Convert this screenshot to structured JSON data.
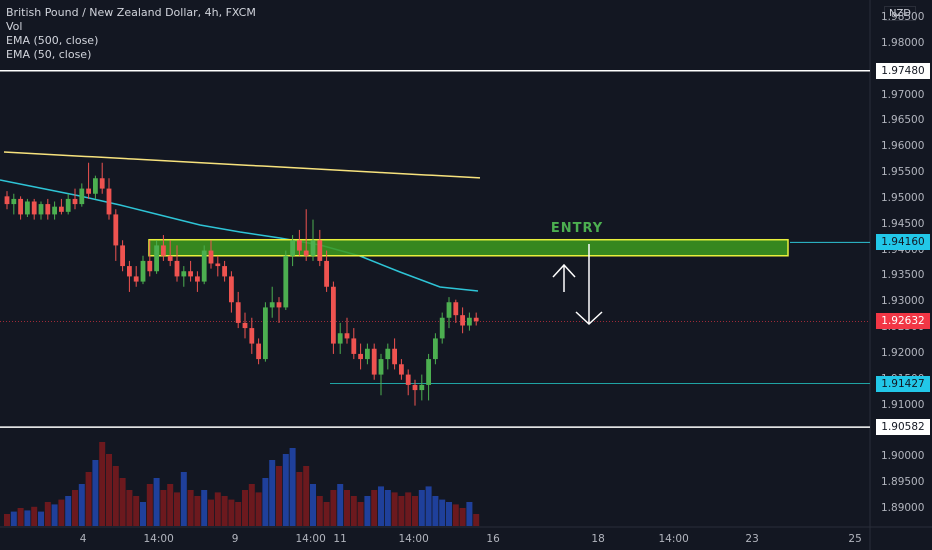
{
  "legend": {
    "title": "British Pound / New Zealand Dollar, 4h, FXCM",
    "vol": "Vol",
    "ema500": "EMA (500, close)",
    "ema50": "EMA (50, close)"
  },
  "currency_badge": "NZD",
  "annotation": {
    "entry_text": "ENTRY"
  },
  "price_axis": {
    "ticks": [
      "1.98500",
      "1.98000",
      "1.97500",
      "1.97000",
      "1.96500",
      "1.96000",
      "1.95500",
      "1.95000",
      "1.94500",
      "1.94000",
      "1.93500",
      "1.93000",
      "1.92500",
      "1.92000",
      "1.91500",
      "1.91000",
      "1.90500",
      "1.90000",
      "1.89500",
      "1.89000"
    ],
    "tick_values": [
      1.985,
      1.98,
      1.975,
      1.97,
      1.965,
      1.96,
      1.955,
      1.95,
      1.945,
      1.94,
      1.935,
      1.93,
      1.925,
      1.92,
      1.915,
      1.91,
      1.905,
      1.9,
      1.895,
      1.89
    ]
  },
  "price_labels": [
    {
      "text": "1.97480",
      "value": 1.9748,
      "bg": "#ffffff",
      "fg": "#131722"
    },
    {
      "text": "1.94160",
      "value": 1.9416,
      "bg": "#22c7e8",
      "fg": "#131722"
    },
    {
      "text": "1.92632",
      "value": 1.92632,
      "bg": "#f23645",
      "fg": "#ffffff"
    },
    {
      "text": "1.91427",
      "value": 1.91427,
      "bg": "#22c7e8",
      "fg": "#131722"
    },
    {
      "text": "1.90582",
      "value": 1.90582,
      "bg": "#ffffff",
      "fg": "#131722"
    }
  ],
  "time_axis": {
    "labels": [
      "4",
      "14:00",
      "9",
      "14:00",
      "11",
      "14:00",
      "16",
      "18",
      "14:00",
      "23",
      "25"
    ]
  },
  "colors": {
    "bg": "#131722",
    "up": "#26a69a",
    "down": "#ef5350",
    "candle_up": "#4caf50",
    "candle_down": "#ef5350",
    "ema500": "#f7e27d",
    "ema50": "#2ec4d6",
    "zone_fill": "#3d9b1f",
    "zone_border": "#e8f03c",
    "hline": "#ffffff",
    "support_line": "#1fa3a3",
    "vol_up": "#2962ff",
    "vol_down": "#b71c1c"
  },
  "chart_data": {
    "type": "candlestick",
    "symbol": "British Pound / New Zealand Dollar, 4h, FXCM",
    "ylim": [
      1.8865,
      1.9885
    ],
    "candles": [
      {
        "o": 1.9505,
        "h": 1.9515,
        "l": 1.948,
        "c": 1.949
      },
      {
        "o": 1.949,
        "h": 1.951,
        "l": 1.947,
        "c": 1.95
      },
      {
        "o": 1.95,
        "h": 1.9505,
        "l": 1.946,
        "c": 1.947
      },
      {
        "o": 1.947,
        "h": 1.95,
        "l": 1.9465,
        "c": 1.9495
      },
      {
        "o": 1.9495,
        "h": 1.95,
        "l": 1.946,
        "c": 1.947
      },
      {
        "o": 1.947,
        "h": 1.9495,
        "l": 1.946,
        "c": 1.949
      },
      {
        "o": 1.949,
        "h": 1.95,
        "l": 1.946,
        "c": 1.947
      },
      {
        "o": 1.947,
        "h": 1.9495,
        "l": 1.946,
        "c": 1.9485
      },
      {
        "o": 1.9485,
        "h": 1.95,
        "l": 1.947,
        "c": 1.9475
      },
      {
        "o": 1.9475,
        "h": 1.951,
        "l": 1.947,
        "c": 1.95
      },
      {
        "o": 1.95,
        "h": 1.952,
        "l": 1.948,
        "c": 1.949
      },
      {
        "o": 1.949,
        "h": 1.953,
        "l": 1.9485,
        "c": 1.952
      },
      {
        "o": 1.952,
        "h": 1.957,
        "l": 1.95,
        "c": 1.951
      },
      {
        "o": 1.951,
        "h": 1.9545,
        "l": 1.95,
        "c": 1.954
      },
      {
        "o": 1.954,
        "h": 1.957,
        "l": 1.951,
        "c": 1.952
      },
      {
        "o": 1.952,
        "h": 1.954,
        "l": 1.946,
        "c": 1.947
      },
      {
        "o": 1.947,
        "h": 1.948,
        "l": 1.938,
        "c": 1.941
      },
      {
        "o": 1.941,
        "h": 1.942,
        "l": 1.936,
        "c": 1.937
      },
      {
        "o": 1.937,
        "h": 1.938,
        "l": 1.932,
        "c": 1.935
      },
      {
        "o": 1.935,
        "h": 1.937,
        "l": 1.933,
        "c": 1.934
      },
      {
        "o": 1.934,
        "h": 1.939,
        "l": 1.9335,
        "c": 1.938
      },
      {
        "o": 1.938,
        "h": 1.942,
        "l": 1.935,
        "c": 1.936
      },
      {
        "o": 1.936,
        "h": 1.942,
        "l": 1.9355,
        "c": 1.941
      },
      {
        "o": 1.941,
        "h": 1.943,
        "l": 1.938,
        "c": 1.939
      },
      {
        "o": 1.939,
        "h": 1.942,
        "l": 1.937,
        "c": 1.938
      },
      {
        "o": 1.938,
        "h": 1.941,
        "l": 1.934,
        "c": 1.935
      },
      {
        "o": 1.935,
        "h": 1.937,
        "l": 1.933,
        "c": 1.936
      },
      {
        "o": 1.936,
        "h": 1.938,
        "l": 1.934,
        "c": 1.935
      },
      {
        "o": 1.935,
        "h": 1.936,
        "l": 1.932,
        "c": 1.934
      },
      {
        "o": 1.934,
        "h": 1.941,
        "l": 1.9335,
        "c": 1.94
      },
      {
        "o": 1.94,
        "h": 1.942,
        "l": 1.9365,
        "c": 1.9375
      },
      {
        "o": 1.9375,
        "h": 1.939,
        "l": 1.935,
        "c": 1.937
      },
      {
        "o": 1.937,
        "h": 1.938,
        "l": 1.934,
        "c": 1.935
      },
      {
        "o": 1.935,
        "h": 1.936,
        "l": 1.928,
        "c": 1.93
      },
      {
        "o": 1.93,
        "h": 1.932,
        "l": 1.925,
        "c": 1.926
      },
      {
        "o": 1.926,
        "h": 1.928,
        "l": 1.923,
        "c": 1.925
      },
      {
        "o": 1.925,
        "h": 1.927,
        "l": 1.92,
        "c": 1.922
      },
      {
        "o": 1.922,
        "h": 1.923,
        "l": 1.918,
        "c": 1.919
      },
      {
        "o": 1.919,
        "h": 1.93,
        "l": 1.9185,
        "c": 1.929
      },
      {
        "o": 1.929,
        "h": 1.933,
        "l": 1.927,
        "c": 1.93
      },
      {
        "o": 1.93,
        "h": 1.931,
        "l": 1.926,
        "c": 1.929
      },
      {
        "o": 1.929,
        "h": 1.94,
        "l": 1.9285,
        "c": 1.939
      },
      {
        "o": 1.939,
        "h": 1.943,
        "l": 1.937,
        "c": 1.942
      },
      {
        "o": 1.942,
        "h": 1.944,
        "l": 1.939,
        "c": 1.94
      },
      {
        "o": 1.94,
        "h": 1.948,
        "l": 1.938,
        "c": 1.939
      },
      {
        "o": 1.939,
        "h": 1.946,
        "l": 1.938,
        "c": 1.942
      },
      {
        "o": 1.942,
        "h": 1.944,
        "l": 1.937,
        "c": 1.938
      },
      {
        "o": 1.938,
        "h": 1.94,
        "l": 1.932,
        "c": 1.933
      },
      {
        "o": 1.933,
        "h": 1.934,
        "l": 1.92,
        "c": 1.922
      },
      {
        "o": 1.922,
        "h": 1.926,
        "l": 1.92,
        "c": 1.924
      },
      {
        "o": 1.924,
        "h": 1.927,
        "l": 1.922,
        "c": 1.923
      },
      {
        "o": 1.923,
        "h": 1.925,
        "l": 1.919,
        "c": 1.92
      },
      {
        "o": 1.92,
        "h": 1.922,
        "l": 1.917,
        "c": 1.919
      },
      {
        "o": 1.919,
        "h": 1.922,
        "l": 1.918,
        "c": 1.921
      },
      {
        "o": 1.921,
        "h": 1.922,
        "l": 1.915,
        "c": 1.916
      },
      {
        "o": 1.916,
        "h": 1.92,
        "l": 1.912,
        "c": 1.919
      },
      {
        "o": 1.919,
        "h": 1.922,
        "l": 1.917,
        "c": 1.921
      },
      {
        "o": 1.921,
        "h": 1.923,
        "l": 1.917,
        "c": 1.918
      },
      {
        "o": 1.918,
        "h": 1.919,
        "l": 1.915,
        "c": 1.916
      },
      {
        "o": 1.916,
        "h": 1.917,
        "l": 1.912,
        "c": 1.914
      },
      {
        "o": 1.914,
        "h": 1.915,
        "l": 1.91,
        "c": 1.913
      },
      {
        "o": 1.913,
        "h": 1.916,
        "l": 1.911,
        "c": 1.914
      },
      {
        "o": 1.914,
        "h": 1.92,
        "l": 1.911,
        "c": 1.919
      },
      {
        "o": 1.919,
        "h": 1.924,
        "l": 1.918,
        "c": 1.923
      },
      {
        "o": 1.923,
        "h": 1.928,
        "l": 1.922,
        "c": 1.927
      },
      {
        "o": 1.927,
        "h": 1.931,
        "l": 1.925,
        "c": 1.93
      },
      {
        "o": 1.93,
        "h": 1.9305,
        "l": 1.926,
        "c": 1.9275
      },
      {
        "o": 1.9275,
        "h": 1.929,
        "l": 1.924,
        "c": 1.9255
      },
      {
        "o": 1.9255,
        "h": 1.928,
        "l": 1.9245,
        "c": 1.927
      },
      {
        "o": 1.927,
        "h": 1.928,
        "l": 1.9255,
        "c": 1.92632
      }
    ],
    "volume": [
      0.1,
      0.12,
      0.15,
      0.13,
      0.16,
      0.12,
      0.2,
      0.18,
      0.22,
      0.25,
      0.3,
      0.35,
      0.45,
      0.55,
      0.7,
      0.6,
      0.5,
      0.4,
      0.3,
      0.25,
      0.2,
      0.35,
      0.4,
      0.3,
      0.35,
      0.28,
      0.45,
      0.3,
      0.25,
      0.3,
      0.22,
      0.28,
      0.25,
      0.22,
      0.2,
      0.3,
      0.35,
      0.28,
      0.4,
      0.55,
      0.5,
      0.6,
      0.65,
      0.45,
      0.5,
      0.35,
      0.25,
      0.2,
      0.3,
      0.35,
      0.3,
      0.25,
      0.2,
      0.25,
      0.3,
      0.33,
      0.3,
      0.28,
      0.25,
      0.28,
      0.25,
      0.3,
      0.33,
      0.25,
      0.22,
      0.2,
      0.18,
      0.15,
      0.2,
      0.1
    ],
    "entry_zone": [
      1.939,
      1.9421
    ],
    "horizontal_lines": [
      1.9748,
      1.90582,
      1.9416,
      1.91427
    ]
  }
}
